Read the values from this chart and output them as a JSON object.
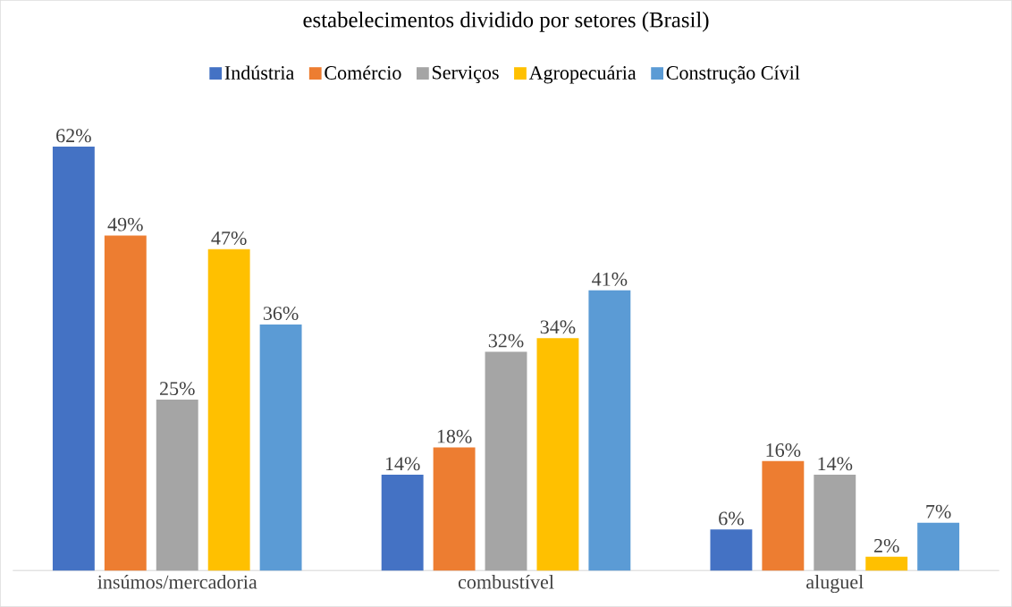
{
  "chart_data": {
    "type": "bar",
    "title": "estabelecimentos dividido por setores (Brasil)",
    "categories": [
      "insúmos/mercadoria",
      "combustível",
      "aluguel"
    ],
    "series": [
      {
        "name": "Indústria",
        "color": "#4472c4",
        "values": [
          62,
          14,
          6
        ],
        "value_labels": [
          "62%",
          "14%",
          "6%"
        ]
      },
      {
        "name": "Comércio",
        "color": "#ed7d31",
        "values": [
          49,
          18,
          16
        ],
        "value_labels": [
          "49%",
          "18%",
          "16%"
        ]
      },
      {
        "name": "Serviços",
        "color": "#a5a5a5",
        "values": [
          25,
          32,
          14
        ],
        "value_labels": [
          "25%",
          "32%",
          "14%"
        ]
      },
      {
        "name": "Agropecuária",
        "color": "#ffc000",
        "values": [
          47,
          34,
          2
        ],
        "value_labels": [
          "47%",
          "34%",
          "2%"
        ]
      },
      {
        "name": "Construção Cívil",
        "color": "#5b9bd5",
        "values": [
          36,
          41,
          7
        ],
        "value_labels": [
          "36%",
          "41%",
          "7%"
        ]
      }
    ],
    "legend": "top"
  }
}
